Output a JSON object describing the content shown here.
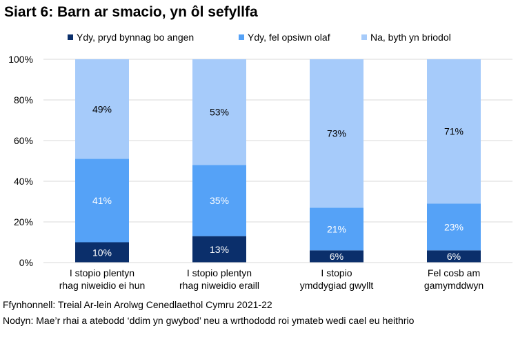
{
  "chart_data": {
    "type": "bar",
    "stacked": true,
    "title": "Siart 6: Barn ar smacio, yn ôl sefyllfa",
    "categories": [
      [
        "I stopio plentyn",
        "rhag niweidio ei hun"
      ],
      [
        "I stopio plentyn",
        "rhag niweidio eraill"
      ],
      [
        "I stopio",
        "ymddygiad gwyllt"
      ],
      [
        "Fel cosb am",
        "gamymddwyn"
      ]
    ],
    "series": [
      {
        "name": "Ydy, pryd bynnag bo angen",
        "color": "#0B2F6B",
        "label_color": "#ffffff",
        "values": [
          10,
          13,
          6,
          6
        ]
      },
      {
        "name": "Ydy, fel opsiwn olaf",
        "color": "#55A2F7",
        "label_color": "#ffffff",
        "values": [
          41,
          35,
          21,
          23
        ]
      },
      {
        "name": "Na, byth yn briodol",
        "color": "#A6CBFA",
        "label_color": "#000000",
        "values": [
          49,
          53,
          73,
          71
        ]
      }
    ],
    "yticks": [
      "0%",
      "20%",
      "40%",
      "60%",
      "80%",
      "100%"
    ],
    "ylim": [
      0,
      100
    ],
    "grid": true,
    "legend": "top"
  },
  "footer": {
    "source": "Ffynhonnell: Treial Ar-lein Arolwg Cenedlaethol Cymru 2021-22",
    "note": "Nodyn: Mae’r rhai a atebodd ‘ddim yn gwybod’ neu a wrthododd roi ymateb wedi cael eu heithrio"
  }
}
